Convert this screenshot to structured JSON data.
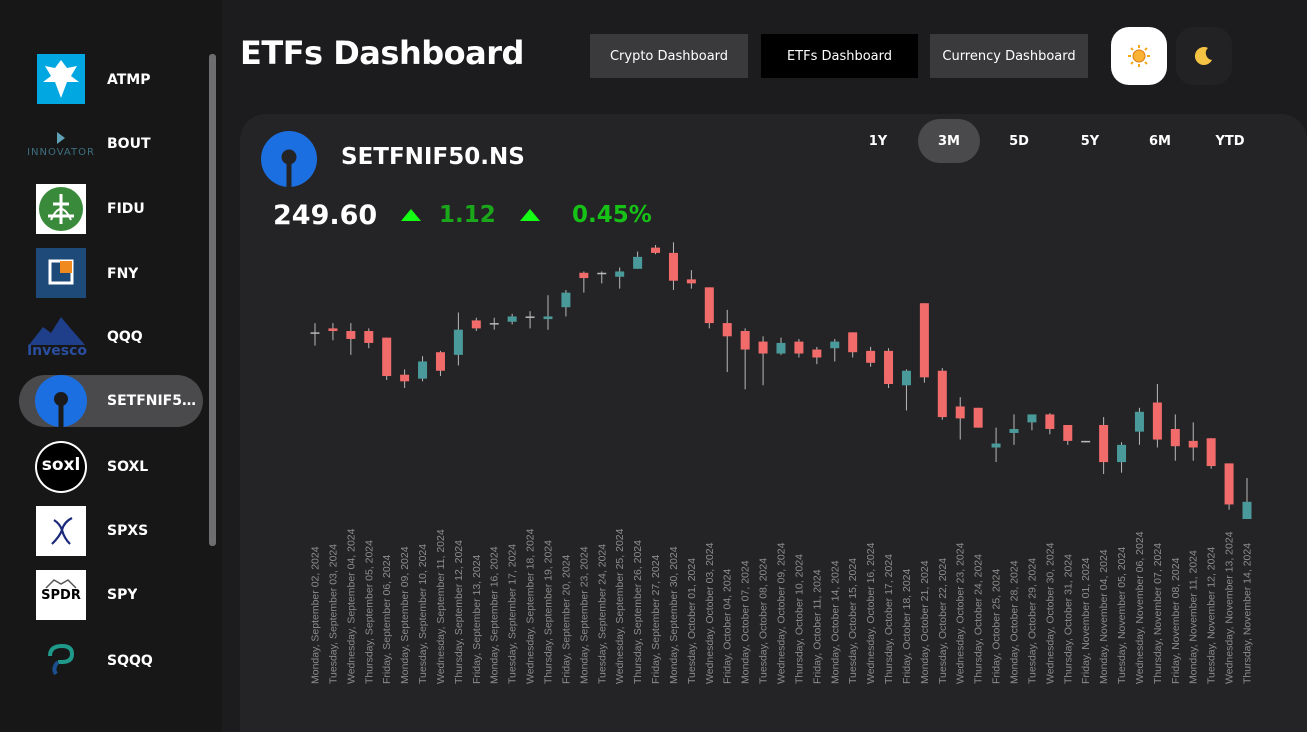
{
  "sidebar": {
    "items": [
      {
        "label": "ATMP",
        "icon": "atmp-eagle-logo",
        "active": false
      },
      {
        "label": "BOUT",
        "icon": "innovator-logo",
        "active": false
      },
      {
        "label": "FIDU",
        "icon": "fidelity-logo",
        "active": false
      },
      {
        "label": "FNY",
        "icon": "fny-logo",
        "active": false
      },
      {
        "label": "QQQ",
        "icon": "invesco-logo",
        "active": false
      },
      {
        "label": "SETFNIF50...",
        "icon": "sbi-logo",
        "active": true
      },
      {
        "label": "SOXL",
        "icon": "soxl-logo",
        "active": false
      },
      {
        "label": "SPXS",
        "icon": "spxs-logo",
        "active": false
      },
      {
        "label": "SPY",
        "icon": "spdr-logo",
        "active": false
      },
      {
        "label": "SQQQ",
        "icon": "sqqq-logo",
        "active": false
      }
    ],
    "logo_text": {
      "innovator": "INNOVATOR",
      "invesco": "Invesco",
      "soxl": "soxl",
      "spdr": "SPDR"
    }
  },
  "header": {
    "title": "ETFs Dashboard",
    "nav": {
      "crypto": "Crypto Dashboard",
      "etfs": "ETFs Dashboard",
      "currency": "Currency Dashboard"
    },
    "theme": {
      "light_icon": "sun-icon",
      "dark_icon": "moon-icon"
    }
  },
  "asset": {
    "name": "SETFNIF50.NS",
    "price": "249.60",
    "change": "1.12",
    "change_pct": "0.45%",
    "up_color": "#14ff14"
  },
  "ranges": [
    {
      "label": "1Y",
      "active": false
    },
    {
      "label": "3M",
      "active": true
    },
    {
      "label": "5D",
      "active": false
    },
    {
      "label": "5Y",
      "active": false
    },
    {
      "label": "6M",
      "active": false
    },
    {
      "label": "YTD",
      "active": false
    }
  ],
  "colors": {
    "up": "#4a9a9b",
    "down": "#f26b6b",
    "background": "#1c1c1e",
    "card": "#242426"
  },
  "chart_data": {
    "type": "candlestick",
    "x_label_rotation": "vertical",
    "candles": [
      {
        "date": "Monday, September 02, 2024",
        "open": 289.1,
        "high": 289.8,
        "low": 288.1,
        "close": 289.1
      },
      {
        "date": "Tuesday, September 03, 2024",
        "open": 289.4,
        "high": 289.8,
        "low": 288.5,
        "close": 289.2
      },
      {
        "date": "Wednesday, September 04, 2024",
        "open": 289.2,
        "high": 289.8,
        "low": 287.4,
        "close": 288.6
      },
      {
        "date": "Thursday, September 05, 2024",
        "open": 289.2,
        "high": 289.4,
        "low": 287.9,
        "close": 288.3
      },
      {
        "date": "Friday, September 06, 2024",
        "open": 288.7,
        "high": 288.7,
        "low": 285.5,
        "close": 285.8
      },
      {
        "date": "Monday, September 09, 2024",
        "open": 285.9,
        "high": 286.3,
        "low": 284.9,
        "close": 285.4
      },
      {
        "date": "Tuesday, September 10, 2024",
        "open": 285.6,
        "high": 287.3,
        "low": 285.4,
        "close": 286.9
      },
      {
        "date": "Wednesday, September 11, 2024",
        "open": 287.6,
        "high": 287.7,
        "low": 285.8,
        "close": 286.2
      },
      {
        "date": "Thursday, September 12, 2024",
        "open": 287.4,
        "high": 290.6,
        "low": 286.6,
        "close": 289.3
      },
      {
        "date": "Friday, September 13, 2024",
        "open": 290.0,
        "high": 290.2,
        "low": 289.2,
        "close": 289.4
      },
      {
        "date": "Monday, September 16, 2024",
        "open": 289.8,
        "high": 290.2,
        "low": 289.3,
        "close": 289.8
      },
      {
        "date": "Tuesday, September 17, 2024",
        "open": 289.9,
        "high": 290.5,
        "low": 289.7,
        "close": 290.3
      },
      {
        "date": "Wednesday, September 18, 2024",
        "open": 290.3,
        "high": 290.7,
        "low": 289.4,
        "close": 290.2
      },
      {
        "date": "Thursday, September 19, 2024",
        "open": 290.1,
        "high": 291.9,
        "low": 289.3,
        "close": 290.3
      },
      {
        "date": "Friday, September 20, 2024",
        "open": 291.0,
        "high": 292.3,
        "low": 290.3,
        "close": 292.1
      },
      {
        "date": "Monday, September 23, 2024",
        "open": 293.6,
        "high": 293.7,
        "low": 292.1,
        "close": 293.2
      },
      {
        "date": "Tuesday, September 24, 2024",
        "open": 293.6,
        "high": 293.7,
        "low": 292.8,
        "close": 293.5
      },
      {
        "date": "Wednesday, September 25, 2024",
        "open": 293.3,
        "high": 294.0,
        "low": 292.4,
        "close": 293.7
      },
      {
        "date": "Thursday, September 26, 2024",
        "open": 293.9,
        "high": 295.2,
        "low": 293.9,
        "close": 294.8
      },
      {
        "date": "Friday, September 27, 2024",
        "open": 295.5,
        "high": 295.7,
        "low": 295.0,
        "close": 295.1
      },
      {
        "date": "Monday, September 30, 2024",
        "open": 295.1,
        "high": 295.9,
        "low": 292.3,
        "close": 293.0
      },
      {
        "date": "Tuesday, October 01, 2024",
        "open": 293.1,
        "high": 293.8,
        "low": 292.4,
        "close": 292.8
      },
      {
        "date": "Wednesday, October 03, 2024",
        "open": 292.5,
        "high": 292.5,
        "low": 289.4,
        "close": 289.8
      },
      {
        "date": "Friday, October 04, 2024",
        "open": 289.8,
        "high": 290.8,
        "low": 286.1,
        "close": 288.8
      },
      {
        "date": "Monday, October 07, 2024",
        "open": 289.2,
        "high": 289.4,
        "low": 284.8,
        "close": 287.8
      },
      {
        "date": "Tuesday, October 08, 2024",
        "open": 288.4,
        "high": 288.8,
        "low": 285.1,
        "close": 287.5
      },
      {
        "date": "Wednesday, October 09, 2024",
        "open": 287.5,
        "high": 288.7,
        "low": 287.4,
        "close": 288.3
      },
      {
        "date": "Thursday, October 10, 2024",
        "open": 288.4,
        "high": 288.6,
        "low": 287.2,
        "close": 287.5
      },
      {
        "date": "Friday, October 11, 2024",
        "open": 287.8,
        "high": 288.0,
        "low": 286.7,
        "close": 287.2
      },
      {
        "date": "Monday, October 14, 2024",
        "open": 287.9,
        "high": 288.6,
        "low": 286.9,
        "close": 288.4
      },
      {
        "date": "Tuesday, October 15, 2024",
        "open": 289.1,
        "high": 289.1,
        "low": 287.2,
        "close": 287.6
      },
      {
        "date": "Wednesday, October 16, 2024",
        "open": 287.7,
        "high": 288.0,
        "low": 286.5,
        "close": 286.8
      },
      {
        "date": "Thursday, October 17, 2024",
        "open": 287.7,
        "high": 287.9,
        "low": 284.9,
        "close": 285.2
      },
      {
        "date": "Friday, October 18, 2024",
        "open": 285.1,
        "high": 286.3,
        "low": 283.2,
        "close": 286.2
      },
      {
        "date": "Monday, October 21, 2024",
        "open": 291.3,
        "high": 291.3,
        "low": 285.3,
        "close": 285.7
      },
      {
        "date": "Tuesday, October 22, 2024",
        "open": 286.2,
        "high": 286.4,
        "low": 282.5,
        "close": 282.7
      },
      {
        "date": "Wednesday, October 23, 2024",
        "open": 283.5,
        "high": 284.2,
        "low": 281.0,
        "close": 282.6
      },
      {
        "date": "Thursday, October 24, 2024",
        "open": 283.4,
        "high": 283.4,
        "low": 281.9,
        "close": 281.9
      },
      {
        "date": "Friday, October 25, 2024",
        "open": 280.4,
        "high": 281.9,
        "low": 279.3,
        "close": 280.7
      },
      {
        "date": "Monday, October 28, 2024",
        "open": 281.5,
        "high": 282.9,
        "low": 280.6,
        "close": 281.8
      },
      {
        "date": "Tuesday, October 29, 2024",
        "open": 282.3,
        "high": 282.9,
        "low": 281.7,
        "close": 282.9
      },
      {
        "date": "Wednesday, October 30, 2024",
        "open": 282.9,
        "high": 283.0,
        "low": 281.4,
        "close": 281.8
      },
      {
        "date": "Thursday, October 31, 2024",
        "open": 282.1,
        "high": 282.1,
        "low": 280.6,
        "close": 280.9
      },
      {
        "date": "Friday, November 01, 2024",
        "open": 280.9,
        "high": 280.9,
        "low": 280.8,
        "close": 280.9
      },
      {
        "date": "Monday, November 04, 2024",
        "open": 282.1,
        "high": 282.7,
        "low": 278.4,
        "close": 279.3
      },
      {
        "date": "Tuesday, November 05, 2024",
        "open": 279.3,
        "high": 280.8,
        "low": 278.5,
        "close": 280.6
      },
      {
        "date": "Wednesday, November 06, 2024",
        "open": 281.6,
        "high": 283.4,
        "low": 280.6,
        "close": 283.1
      },
      {
        "date": "Thursday, November 07, 2024",
        "open": 283.8,
        "high": 285.2,
        "low": 280.4,
        "close": 281.0
      },
      {
        "date": "Friday, November 08, 2024",
        "open": 281.8,
        "high": 282.9,
        "low": 279.4,
        "close": 280.5
      },
      {
        "date": "Monday, November 11, 2024",
        "open": 280.9,
        "high": 282.3,
        "low": 279.4,
        "close": 280.4
      },
      {
        "date": "Tuesday, November 12, 2024",
        "open": 281.1,
        "high": 281.1,
        "low": 278.8,
        "close": 279.0
      },
      {
        "date": "Wednesday, November 13, 2024",
        "open": 279.2,
        "high": 279.2,
        "low": 275.7,
        "close": 276.1
      },
      {
        "date": "Thursday, November 14, 2024",
        "open": 275.0,
        "high": 278.1,
        "low": 275.0,
        "close": 276.3
      }
    ]
  }
}
